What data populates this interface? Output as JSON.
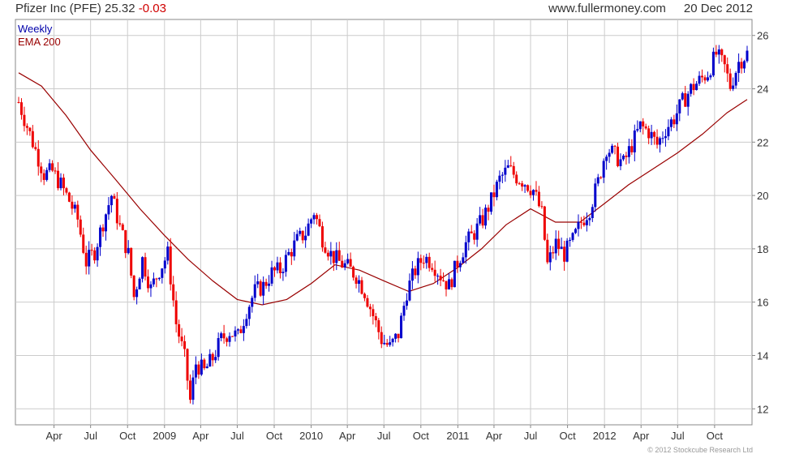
{
  "header": {
    "symbol_text": "Pfizer Inc (PFE) 25.32",
    "change": "-0.03",
    "site": "www.fullermoney.com",
    "date": "20 Dec 2012"
  },
  "legend": [
    "Weekly",
    "EMA 200"
  ],
  "copyright": "© 2012 Stockcube Research Ltd",
  "colors": {
    "up_candle": "#0000cc",
    "down_candle": "#ee0000",
    "ema": "#990000",
    "grid": "#cccccc",
    "legend_weekly": "#0000aa",
    "legend_ema": "#990000"
  },
  "chart_data": {
    "type": "line",
    "subtype": "weekly-candlestick-with-ema",
    "title": "Pfizer Inc (PFE) 25.32 -0.03",
    "y_axis_side": "right",
    "ylim": [
      11.4,
      26.6
    ],
    "yticks": [
      12,
      14,
      16,
      18,
      20,
      22,
      24,
      26
    ],
    "grid": true,
    "legend_position": "top-left",
    "x_range": [
      "2008-01-04",
      "2012-12-21"
    ],
    "x_ticks": [
      {
        "label": "Apr",
        "date": "2008-04-01"
      },
      {
        "label": "Jul",
        "date": "2008-07-01"
      },
      {
        "label": "Oct",
        "date": "2008-10-01"
      },
      {
        "label": "2009",
        "date": "2009-01-01"
      },
      {
        "label": "Apr",
        "date": "2009-04-01"
      },
      {
        "label": "Jul",
        "date": "2009-07-01"
      },
      {
        "label": "Oct",
        "date": "2009-10-01"
      },
      {
        "label": "2010",
        "date": "2010-01-01"
      },
      {
        "label": "Apr",
        "date": "2010-04-01"
      },
      {
        "label": "Jul",
        "date": "2010-07-01"
      },
      {
        "label": "Oct",
        "date": "2010-10-01"
      },
      {
        "label": "2011",
        "date": "2011-01-01"
      },
      {
        "label": "Apr",
        "date": "2011-04-01"
      },
      {
        "label": "Jul",
        "date": "2011-07-01"
      },
      {
        "label": "Oct",
        "date": "2011-10-01"
      },
      {
        "label": "2012",
        "date": "2012-01-01"
      },
      {
        "label": "Apr",
        "date": "2012-04-01"
      },
      {
        "label": "Jul",
        "date": "2012-07-01"
      },
      {
        "label": "Oct",
        "date": "2012-10-01"
      }
    ],
    "series": [
      {
        "name": "Weekly",
        "kind": "close-path",
        "points": [
          [
            "2008-01-04",
            23.5
          ],
          [
            "2008-01-25",
            22.6
          ],
          [
            "2008-02-15",
            21.7
          ],
          [
            "2008-03-07",
            20.8
          ],
          [
            "2008-03-28",
            20.9
          ],
          [
            "2008-04-18",
            20.4
          ],
          [
            "2008-05-09",
            19.8
          ],
          [
            "2008-05-30",
            19.1
          ],
          [
            "2008-06-20",
            17.5
          ],
          [
            "2008-07-11",
            17.9
          ],
          [
            "2008-08-01",
            19.0
          ],
          [
            "2008-08-22",
            20.0
          ],
          [
            "2008-09-12",
            18.8
          ],
          [
            "2008-10-03",
            17.8
          ],
          [
            "2008-10-17",
            16.2
          ],
          [
            "2008-11-07",
            17.6
          ],
          [
            "2008-11-28",
            16.5
          ],
          [
            "2008-12-19",
            17.2
          ],
          [
            "2009-01-09",
            17.8
          ],
          [
            "2009-01-30",
            15.2
          ],
          [
            "2009-02-20",
            13.9
          ],
          [
            "2009-03-06",
            12.3
          ],
          [
            "2009-03-20",
            13.7
          ],
          [
            "2009-04-10",
            13.4
          ],
          [
            "2009-05-01",
            13.9
          ],
          [
            "2009-05-22",
            14.6
          ],
          [
            "2009-06-12",
            14.9
          ],
          [
            "2009-07-03",
            14.7
          ],
          [
            "2009-07-24",
            15.7
          ],
          [
            "2009-08-14",
            16.4
          ],
          [
            "2009-09-04",
            16.6
          ],
          [
            "2009-09-25",
            17.1
          ],
          [
            "2009-10-16",
            17.2
          ],
          [
            "2009-11-06",
            17.8
          ],
          [
            "2009-11-27",
            18.3
          ],
          [
            "2009-12-18",
            18.6
          ],
          [
            "2010-01-08",
            19.4
          ],
          [
            "2010-01-29",
            18.4
          ],
          [
            "2010-02-19",
            17.8
          ],
          [
            "2010-03-12",
            17.5
          ],
          [
            "2010-04-02",
            17.3
          ],
          [
            "2010-04-23",
            17.0
          ],
          [
            "2010-05-14",
            16.4
          ],
          [
            "2010-06-04",
            15.5
          ],
          [
            "2010-06-25",
            14.6
          ],
          [
            "2010-07-16",
            14.3
          ],
          [
            "2010-08-06",
            14.8
          ],
          [
            "2010-08-27",
            16.4
          ],
          [
            "2010-09-17",
            17.2
          ],
          [
            "2010-10-08",
            17.7
          ],
          [
            "2010-10-29",
            17.5
          ],
          [
            "2010-11-19",
            17.0
          ],
          [
            "2010-12-10",
            16.6
          ],
          [
            "2010-12-31",
            17.5
          ],
          [
            "2011-01-21",
            18.2
          ],
          [
            "2011-02-11",
            18.6
          ],
          [
            "2011-03-04",
            19.1
          ],
          [
            "2011-03-25",
            19.8
          ],
          [
            "2011-04-15",
            20.6
          ],
          [
            "2011-05-06",
            21.0
          ],
          [
            "2011-05-27",
            20.7
          ],
          [
            "2011-06-17",
            20.5
          ],
          [
            "2011-07-08",
            20.2
          ],
          [
            "2011-07-29",
            19.3
          ],
          [
            "2011-08-12",
            17.4
          ],
          [
            "2011-09-02",
            18.2
          ],
          [
            "2011-09-23",
            17.8
          ],
          [
            "2011-10-14",
            18.3
          ],
          [
            "2011-11-04",
            19.0
          ],
          [
            "2011-11-25",
            19.5
          ],
          [
            "2011-12-16",
            20.5
          ],
          [
            "2012-01-06",
            21.8
          ],
          [
            "2012-01-27",
            21.5
          ],
          [
            "2012-02-17",
            21.2
          ],
          [
            "2012-03-09",
            21.9
          ],
          [
            "2012-03-30",
            22.6
          ],
          [
            "2012-04-20",
            22.4
          ],
          [
            "2012-05-11",
            21.9
          ],
          [
            "2012-06-01",
            22.5
          ],
          [
            "2012-06-22",
            22.9
          ],
          [
            "2012-07-13",
            23.5
          ],
          [
            "2012-08-03",
            24.0
          ],
          [
            "2012-08-24",
            24.3
          ],
          [
            "2012-09-14",
            24.6
          ],
          [
            "2012-10-05",
            25.3
          ],
          [
            "2012-10-26",
            24.8
          ],
          [
            "2012-11-09",
            24.1
          ],
          [
            "2012-11-30",
            25.0
          ],
          [
            "2012-12-21",
            25.32
          ]
        ]
      },
      {
        "name": "EMA 200",
        "kind": "line",
        "points": [
          [
            "2008-01-04",
            24.6
          ],
          [
            "2008-03-01",
            24.1
          ],
          [
            "2008-05-01",
            23.0
          ],
          [
            "2008-07-01",
            21.7
          ],
          [
            "2008-09-01",
            20.6
          ],
          [
            "2008-11-01",
            19.5
          ],
          [
            "2009-01-01",
            18.5
          ],
          [
            "2009-03-01",
            17.6
          ],
          [
            "2009-05-01",
            16.8
          ],
          [
            "2009-07-01",
            16.1
          ],
          [
            "2009-09-01",
            15.9
          ],
          [
            "2009-11-01",
            16.1
          ],
          [
            "2010-01-01",
            16.7
          ],
          [
            "2010-03-01",
            17.4
          ],
          [
            "2010-05-01",
            17.2
          ],
          [
            "2010-07-01",
            16.8
          ],
          [
            "2010-09-01",
            16.4
          ],
          [
            "2010-11-01",
            16.7
          ],
          [
            "2011-01-01",
            17.3
          ],
          [
            "2011-03-01",
            18.0
          ],
          [
            "2011-05-01",
            18.9
          ],
          [
            "2011-07-01",
            19.5
          ],
          [
            "2011-09-01",
            19.0
          ],
          [
            "2011-11-01",
            19.0
          ],
          [
            "2012-01-01",
            19.7
          ],
          [
            "2012-03-01",
            20.4
          ],
          [
            "2012-05-01",
            21.0
          ],
          [
            "2012-07-01",
            21.6
          ],
          [
            "2012-09-01",
            22.3
          ],
          [
            "2012-11-01",
            23.1
          ],
          [
            "2012-12-21",
            23.6
          ]
        ]
      }
    ]
  }
}
